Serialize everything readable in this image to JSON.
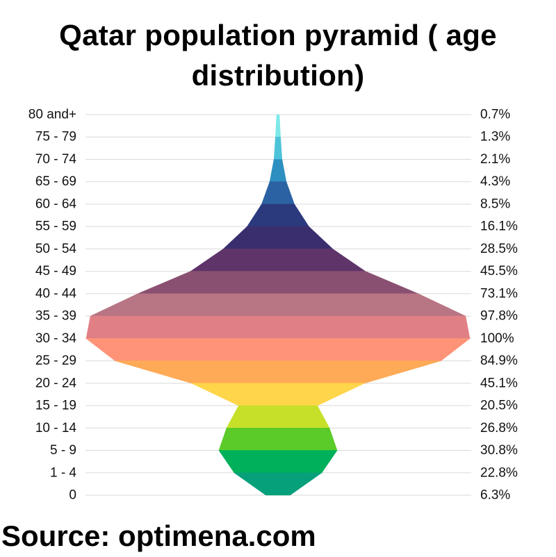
{
  "title": "Qatar population pyramid ( age distribution)",
  "source": "Source: optimena.com",
  "chart_data": {
    "type": "area",
    "title": "Qatar population pyramid ( age distribution)",
    "categories": [
      "80 and+",
      "75 - 79",
      "70 - 74",
      "65 - 69",
      "60 - 64",
      "55 - 59",
      "50 - 54",
      "45 - 49",
      "40 - 44",
      "35 - 39",
      "30 - 34",
      "25 - 29",
      "20 - 24",
      "15 - 19",
      "10 - 14",
      "5 - 9",
      "1 - 4",
      "0"
    ],
    "values": [
      0.7,
      1.3,
      2.1,
      4.3,
      8.5,
      16.1,
      28.5,
      45.5,
      73.1,
      97.8,
      100,
      84.9,
      45.1,
      20.5,
      26.8,
      30.8,
      22.8,
      6.3
    ],
    "value_labels": [
      "0.7%",
      "1.3%",
      "2.1%",
      "4.3%",
      "8.5%",
      "16.1%",
      "28.5%",
      "45.5%",
      "73.1%",
      "97.8%",
      "100%",
      "84.9%",
      "45.1%",
      "20.5%",
      "26.8%",
      "30.8%",
      "22.8%",
      "6.3%"
    ],
    "ylim": [
      0,
      100
    ],
    "grid": true,
    "colors": [
      "#7ee8e8",
      "#4cc3d9",
      "#2d8fc0",
      "#2b62a3",
      "#2b3a7d",
      "#3a2e6e",
      "#5e3469",
      "#8a5071",
      "#b87583",
      "#e08085",
      "#ff9378",
      "#ffaa57",
      "#ffd54a",
      "#c6e02a",
      "#5acb28",
      "#00b15a",
      "#06a07a",
      "#3b9282"
    ]
  }
}
